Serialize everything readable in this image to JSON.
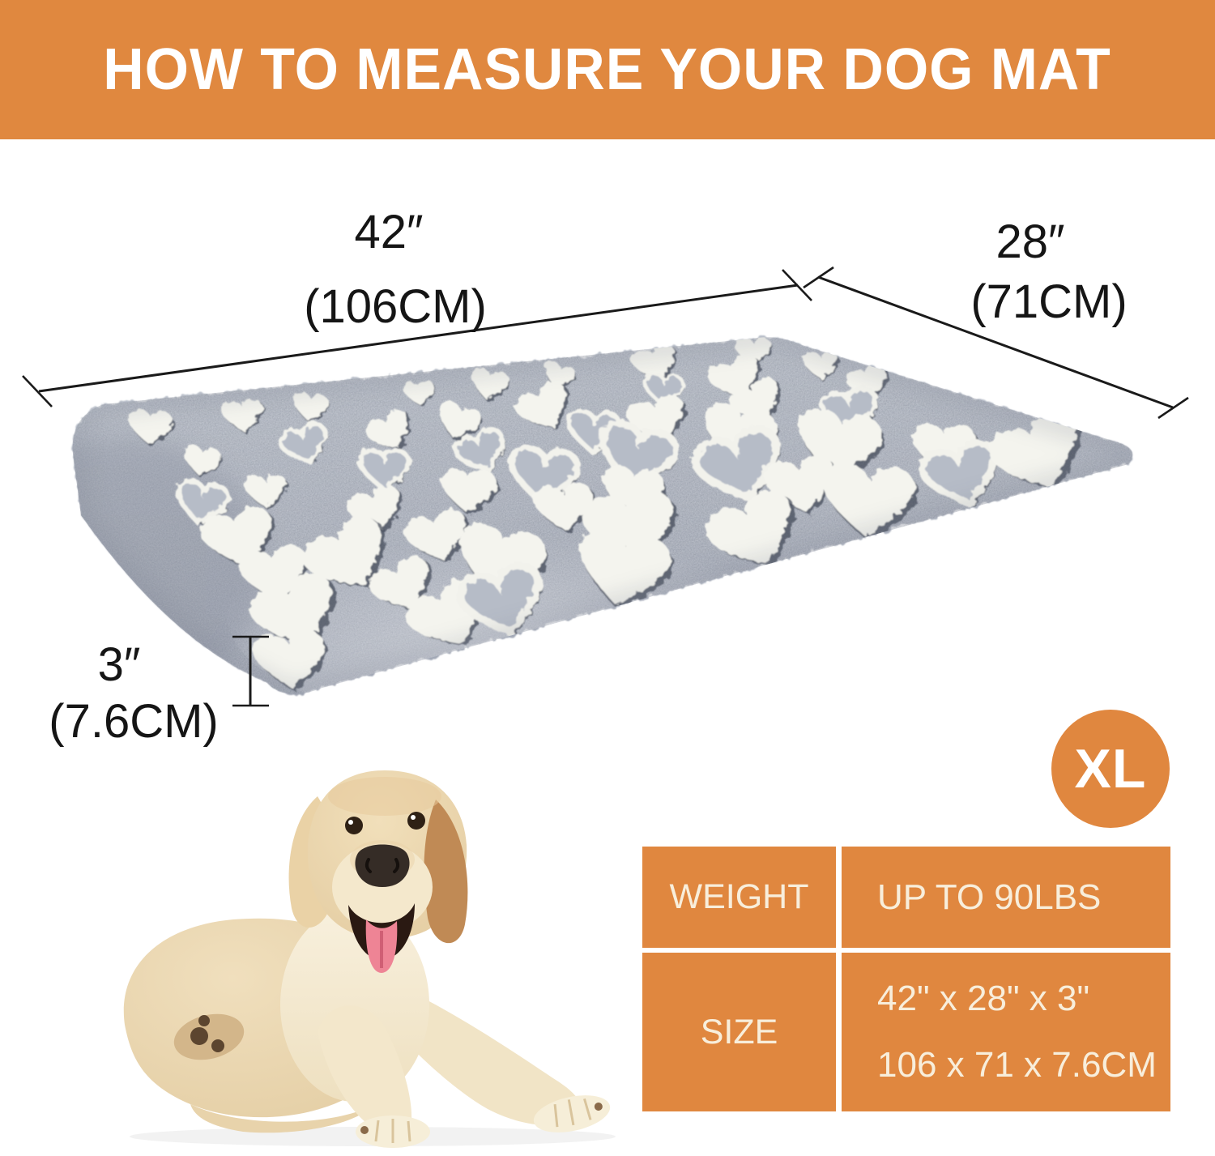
{
  "header": {
    "title": "HOW TO MEASURE YOUR DOG MAT",
    "bg_color": "#e0883f",
    "text_color": "#ffffff"
  },
  "diagram": {
    "length_label": {
      "inches": "42″",
      "cm": "(106CM)"
    },
    "width_label": {
      "inches": "28″",
      "cm": "(71CM)"
    },
    "thickness_label": {
      "inches": "3″",
      "cm": "(7.6CM)"
    },
    "mat_base_color": "#aeb4c0",
    "heart_color": "#f4f4ee",
    "line_color": "#1a1a1a"
  },
  "size_badge": {
    "label": "XL",
    "bg_color": "#e0873f",
    "text_color": "#ffffff"
  },
  "spec_table": {
    "cell_color": "#e0873f",
    "text_color": "#f8eedb",
    "rows": [
      {
        "label": "WEIGHT",
        "values": [
          "UP TO 90LBS"
        ]
      },
      {
        "label": "SIZE",
        "values": [
          "42\" x 28\" x 3\"",
          "106 x 71 x 7.6CM"
        ]
      }
    ]
  }
}
